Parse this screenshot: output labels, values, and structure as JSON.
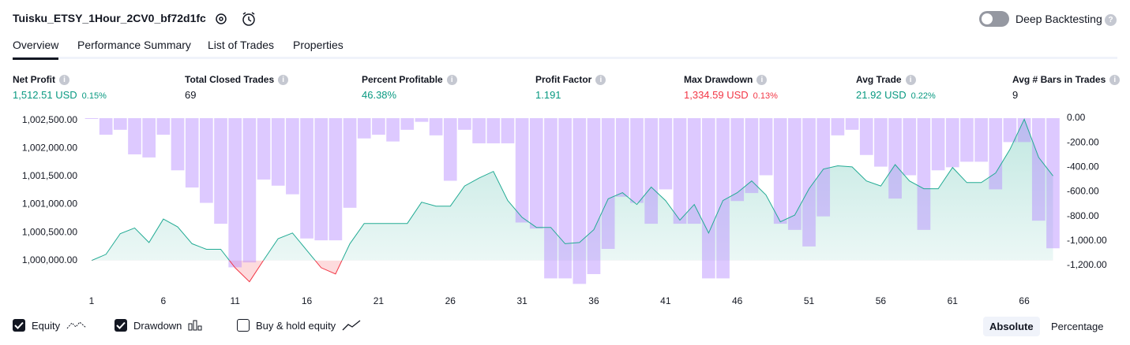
{
  "header": {
    "title": "Tuisku_ETSY_1Hour_2CV0_bf72d1fc",
    "toggle_label": "Deep Backtesting",
    "toggle_on": false
  },
  "tabs": [
    "Overview",
    "Performance Summary",
    "List of Trades",
    "Properties"
  ],
  "active_tab": 0,
  "metrics": [
    {
      "label": "Net Profit",
      "value": "1,512.51 USD",
      "percent": "0.15%",
      "tone": "positive"
    },
    {
      "label": "Total Closed Trades",
      "value": "69",
      "tone": "neutral"
    },
    {
      "label": "Percent Profitable",
      "value": "46.38%",
      "tone": "positive"
    },
    {
      "label": "Profit Factor",
      "value": "1.191",
      "tone": "positive"
    },
    {
      "label": "Max Drawdown",
      "value": "1,334.59 USD",
      "percent": "0.13%",
      "tone": "negative"
    },
    {
      "label": "Avg Trade",
      "value": "21.92 USD",
      "percent": "0.22%",
      "tone": "positive"
    },
    {
      "label": "Avg # Bars in Trades",
      "value": "9",
      "tone": "neutral"
    }
  ],
  "chart_data": {
    "type": "line",
    "x": [
      1,
      2,
      3,
      4,
      5,
      6,
      7,
      8,
      9,
      10,
      11,
      12,
      13,
      14,
      15,
      16,
      17,
      18,
      19,
      20,
      21,
      22,
      23,
      24,
      25,
      26,
      27,
      28,
      29,
      30,
      31,
      32,
      33,
      34,
      35,
      36,
      37,
      38,
      39,
      40,
      41,
      42,
      43,
      44,
      45,
      46,
      47,
      48,
      49,
      50,
      51,
      52,
      53,
      54,
      55,
      56,
      57,
      58,
      59,
      60,
      61,
      62,
      63,
      64,
      65,
      66,
      67,
      68
    ],
    "xlim": [
      0.67,
      68.36
    ],
    "xticks": [
      1,
      6,
      11,
      16,
      21,
      26,
      31,
      36,
      41,
      46,
      51,
      56,
      61,
      66
    ],
    "ylim": [
      999560,
      1002540
    ],
    "yticks": [
      {
        "value": 1000000,
        "label": "1,000,000.00"
      },
      {
        "value": 1000500,
        "label": "1,000,500.00"
      },
      {
        "value": 1001000,
        "label": "1,001,000.00"
      },
      {
        "value": 1001500,
        "label": "1,001,500.00"
      },
      {
        "value": 1002000,
        "label": "1,002,000.00"
      },
      {
        "value": 1002500,
        "label": "1,002,500.00"
      }
    ],
    "y2lim": [
      -1360,
      0
    ],
    "y2ticks": [
      {
        "value": 0,
        "label": "0.00"
      },
      {
        "value": -200,
        "label": "-200.00"
      },
      {
        "value": -400,
        "label": "-400.00"
      },
      {
        "value": -600,
        "label": "-600.00"
      },
      {
        "value": -800,
        "label": "-800.00"
      },
      {
        "value": -1000,
        "label": "-1,000.00"
      },
      {
        "value": -1200,
        "label": "-1,200.00"
      }
    ],
    "series": [
      {
        "name": "Equity",
        "color": "#22ab94",
        "negative_color": "#f23645",
        "checked": true,
        "values": [
          1000000,
          1000110,
          1000480,
          1000580,
          1000320,
          1000740,
          1000600,
          1000300,
          1000200,
          1000200,
          999870,
          999620,
          1000010,
          1000390,
          1000490,
          1000180,
          999870,
          999760,
          1000300,
          1000660,
          1000660,
          1000660,
          1000660,
          1001040,
          1000970,
          1000970,
          1001330,
          1001470,
          1001590,
          1001070,
          1000770,
          1000590,
          1000590,
          1000300,
          1000320,
          1000550,
          1001100,
          1001210,
          1001000,
          1001310,
          1001070,
          1000720,
          1001000,
          1000490,
          1001070,
          1001210,
          1001420,
          1001170,
          1000690,
          1000810,
          1001280,
          1001630,
          1001690,
          1001670,
          1001420,
          1001330,
          1001710,
          1001420,
          1001280,
          1001280,
          1001660,
          1001390,
          1001390,
          1001560,
          1001980,
          1002520,
          1001840,
          1001510
        ]
      },
      {
        "name": "Drawdown",
        "color": "#b388ff",
        "axis": "y2",
        "checked": true,
        "values": [
          0,
          -135,
          -95,
          -295,
          -320,
          -135,
          -425,
          -565,
          -690,
          -860,
          -1215,
          -1175,
          -500,
          -550,
          -620,
          -980,
          -995,
          -995,
          -730,
          -165,
          -135,
          -190,
          -95,
          -30,
          -140,
          -510,
          -95,
          -205,
          -205,
          -205,
          -850,
          -900,
          -1305,
          -1305,
          -1350,
          -1270,
          -1065,
          -640,
          -690,
          -860,
          -580,
          -860,
          -860,
          -1305,
          -1305,
          -675,
          -610,
          -465,
          -860,
          -910,
          -1045,
          -800,
          -140,
          -95,
          -300,
          -395,
          -655,
          -465,
          -910,
          -425,
          -400,
          -355,
          -355,
          -580,
          -195,
          -195,
          -835,
          -1060
        ]
      }
    ],
    "extra_legend": {
      "name": "Buy & hold equity",
      "checked": false
    }
  },
  "modes": [
    "Absolute",
    "Percentage"
  ],
  "active_mode": 0
}
